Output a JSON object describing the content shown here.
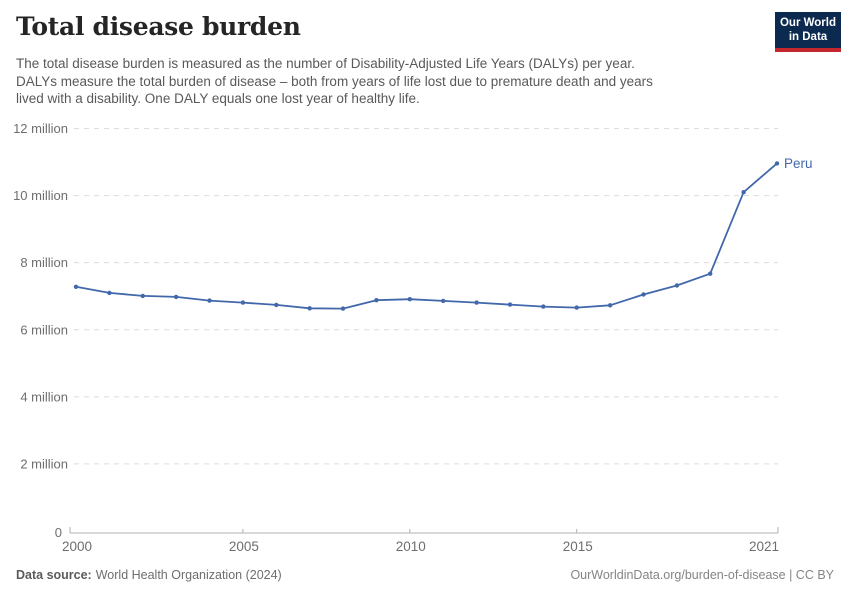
{
  "header": {
    "title": "Total disease burden",
    "subtitle_lines": [
      "The total disease burden is measured as the number of Disability-Adjusted Life Years (DALYs) per year.",
      "DALYs measure the total burden of disease – both from years of life lost due to premature death and years",
      "lived with a disability. One DALY equals one lost year of healthy life."
    ],
    "logo": {
      "line1": "Our World",
      "line2": "in Data"
    }
  },
  "chart_data": {
    "type": "line",
    "title": "Total disease burden",
    "ylabel": "",
    "xlabel": "",
    "unit": "Disability-Adjusted Life Years (DALYs) per year",
    "grid": "horizontal-dashed",
    "legend": "end-of-line-label",
    "ylim": [
      0,
      12000000
    ],
    "xlim": [
      2000,
      2021
    ],
    "x": [
      2000,
      2001,
      2002,
      2003,
      2004,
      2005,
      2006,
      2007,
      2008,
      2009,
      2010,
      2011,
      2012,
      2013,
      2014,
      2015,
      2016,
      2017,
      2018,
      2019,
      2020,
      2021
    ],
    "series": [
      {
        "name": "Peru",
        "values": [
          7280000,
          7100000,
          7010000,
          6980000,
          6870000,
          6810000,
          6740000,
          6640000,
          6630000,
          6880000,
          6910000,
          6860000,
          6810000,
          6750000,
          6690000,
          6660000,
          6730000,
          7050000,
          7320000,
          7670000,
          10100000,
          10960000
        ]
      }
    ],
    "yticks": [
      {
        "value": 0,
        "label": "0"
      },
      {
        "value": 2000000,
        "label": "2 million"
      },
      {
        "value": 4000000,
        "label": "4 million"
      },
      {
        "value": 6000000,
        "label": "6 million"
      },
      {
        "value": 8000000,
        "label": "8 million"
      },
      {
        "value": 10000000,
        "label": "10 million"
      },
      {
        "value": 12000000,
        "label": "12 million"
      }
    ],
    "xticks": [
      {
        "value": 2000,
        "label": "2000"
      },
      {
        "value": 2005,
        "label": "2005"
      },
      {
        "value": 2010,
        "label": "2010"
      },
      {
        "value": 2015,
        "label": "2015"
      },
      {
        "value": 2021,
        "label": "2021"
      }
    ]
  },
  "footer": {
    "datasource_label": "Data source:",
    "datasource_value": "World Health Organization (2024)",
    "link": "OurWorldinData.org/burden-of-disease | CC BY"
  },
  "colors": {
    "line": "#4268ab",
    "grid": "#dcdcdc",
    "axis": "#b0b0b0",
    "tick_text": "#6e6e6e",
    "logo_bg": "#0c2a50",
    "logo_red": "#c3272d"
  }
}
